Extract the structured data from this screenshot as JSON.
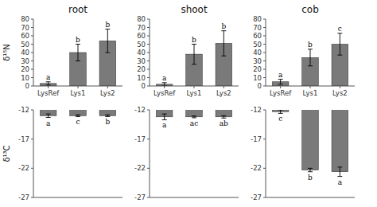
{
  "chart_data": [
    {
      "type": "bar",
      "title": "root",
      "categories": [
        "LysRef",
        "Lys1",
        "Lys2"
      ],
      "values": [
        3,
        40,
        54
      ],
      "errors": [
        2,
        10,
        14
      ],
      "annotations": [
        "a",
        "b",
        "b"
      ],
      "color": "#7a7a7a",
      "ylabel": "δ¹⁵N",
      "ylim": [
        0,
        80
      ],
      "yticks": [
        0,
        10,
        20,
        30,
        40,
        50,
        60,
        70,
        80
      ],
      "tick_labels": true
    },
    {
      "type": "bar",
      "title": "shoot",
      "categories": [
        "LysRef",
        "Lys1",
        "Lys2"
      ],
      "values": [
        2,
        38,
        51
      ],
      "errors": [
        2,
        12,
        15
      ],
      "annotations": [
        "a",
        "b",
        "b"
      ],
      "color": "#7a7a7a",
      "ylim": [
        0,
        80
      ],
      "yticks": [
        0,
        10,
        20,
        30,
        40,
        50,
        60,
        70,
        80
      ],
      "tick_labels": true
    },
    {
      "type": "bar",
      "title": "cob",
      "categories": [
        "LysRef",
        "Lys1",
        "Lys2"
      ],
      "values": [
        5,
        34,
        50
      ],
      "errors": [
        3,
        10,
        13
      ],
      "annotations": [
        "a",
        "b",
        "c"
      ],
      "color": "#7a7a7a",
      "ylim": [
        0,
        80
      ],
      "yticks": [
        0,
        10,
        20,
        30,
        40,
        50,
        60,
        70,
        80
      ],
      "tick_labels": true
    },
    {
      "type": "bar",
      "categories": [
        "LysRef",
        "Lys1",
        "Lys2"
      ],
      "values": [
        -13.0,
        -13.0,
        -13.0
      ],
      "errors": [
        0.3,
        0.15,
        0.15
      ],
      "annotations": [
        "a",
        "c",
        "b"
      ],
      "color": "#7a7a7a",
      "ylabel": "δ¹³C",
      "ylim": [
        -27,
        -12
      ],
      "yticks": [
        -27,
        -22,
        -17,
        -12
      ],
      "tick_labels": "y"
    },
    {
      "type": "bar",
      "categories": [
        "LysRef",
        "Lys1",
        "Lys2"
      ],
      "values": [
        -13.2,
        -13.2,
        -13.2
      ],
      "errors": [
        0.5,
        0.15,
        0.2
      ],
      "annotations": [
        "a",
        "ac",
        "ab"
      ],
      "color": "#7a7a7a",
      "ylim": [
        -27,
        -12
      ],
      "yticks": [
        -27,
        -22,
        -17,
        -12
      ],
      "tick_labels": "y"
    },
    {
      "type": "bar",
      "categories": [
        "LysRef",
        "Lys1",
        "Lys2"
      ],
      "values": [
        -12.3,
        -22.3,
        -22.6
      ],
      "errors": [
        0.3,
        0.3,
        0.8
      ],
      "annotations": [
        "c",
        "b",
        "a"
      ],
      "color": "#7a7a7a",
      "ylim": [
        -27,
        -12
      ],
      "yticks": [
        -27,
        -22,
        -17,
        -12
      ],
      "tick_labels": "y"
    }
  ]
}
